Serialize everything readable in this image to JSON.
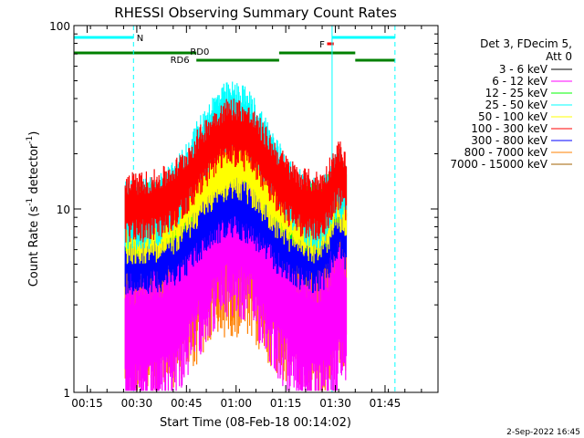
{
  "chart_data": {
    "type": "line",
    "title": "RHESSI Observing Summary Count Rates",
    "xlabel": "Start Time (08-Feb-18 00:14:02)",
    "ylabel_main": "Count Rate (s",
    "ylabel_sup1": "-1",
    "ylabel_mid": " detector",
    "ylabel_sup2": "-1",
    "ylabel_end": ")",
    "ylog": true,
    "ylim": [
      1,
      100
    ],
    "xlim_minutes": [
      11,
      121
    ],
    "x_ticks": [
      "00:15",
      "00:30",
      "00:45",
      "01:00",
      "01:15",
      "01:30",
      "01:45"
    ],
    "x_tick_minutes": [
      15,
      30,
      45,
      60,
      75,
      90,
      105
    ],
    "y_ticks": [
      "1",
      "10",
      "100"
    ],
    "y_tick_values": [
      1,
      10,
      100
    ],
    "legend": {
      "placement": "right",
      "header1": "Det 3, FDecim 5,",
      "header2": "Att 0"
    },
    "series": [
      {
        "name": "3 - 6 keV",
        "color": "#000000",
        "peak": 0,
        "base": 0
      },
      {
        "name": "6 - 12 keV",
        "color": "#ff00ff",
        "peak": 8,
        "base": 2.2
      },
      {
        "name": "12 - 25 keV",
        "color": "#00ff00",
        "peak": 22,
        "base": 9
      },
      {
        "name": "25 - 50 keV",
        "color": "#00ffff",
        "peak": 33,
        "base": 9.5
      },
      {
        "name": "50 - 100 keV",
        "color": "#ffff00",
        "peak": 18,
        "base": 8
      },
      {
        "name": "100 - 300 keV",
        "color": "#ff0000",
        "peak": 27,
        "base": 10.5
      },
      {
        "name": "300 - 800 keV",
        "color": "#0000ff",
        "peak": 11,
        "base": 5.5
      },
      {
        "name": "800 - 7000 keV",
        "color": "#ff8000",
        "peak": 6.5,
        "base": 3
      },
      {
        "name": "7000 - 15000 keV",
        "color": "#a06000",
        "peak": 0,
        "base": 0
      }
    ],
    "data_start_minute": 26.5,
    "data_end_minute": 93.5,
    "peak_minute": 59,
    "annotations": [
      {
        "label": "N",
        "color": "#00ffff",
        "minute": 31
      },
      {
        "label": "RD0",
        "color": "#008000",
        "minute": 49
      },
      {
        "label": "RD6",
        "color": "#008000",
        "minute": 43
      },
      {
        "label": "F",
        "color": "#ff0000",
        "minute": 86
      }
    ],
    "cyan_bars": [
      [
        11,
        29
      ],
      [
        89,
        108
      ]
    ],
    "green_top_bars": [
      [
        11,
        48
      ],
      [
        73,
        96
      ]
    ],
    "green_low_bars": [
      [
        48,
        73
      ],
      [
        96,
        108
      ]
    ],
    "flare_bar": [
      87.5,
      89.5
    ],
    "cyan_solid_minutes": [
      11,
      89
    ],
    "cyan_dashed_minutes": [
      29,
      108
    ]
  },
  "footer": {
    "date": "2-Sep-2022 16:45"
  }
}
